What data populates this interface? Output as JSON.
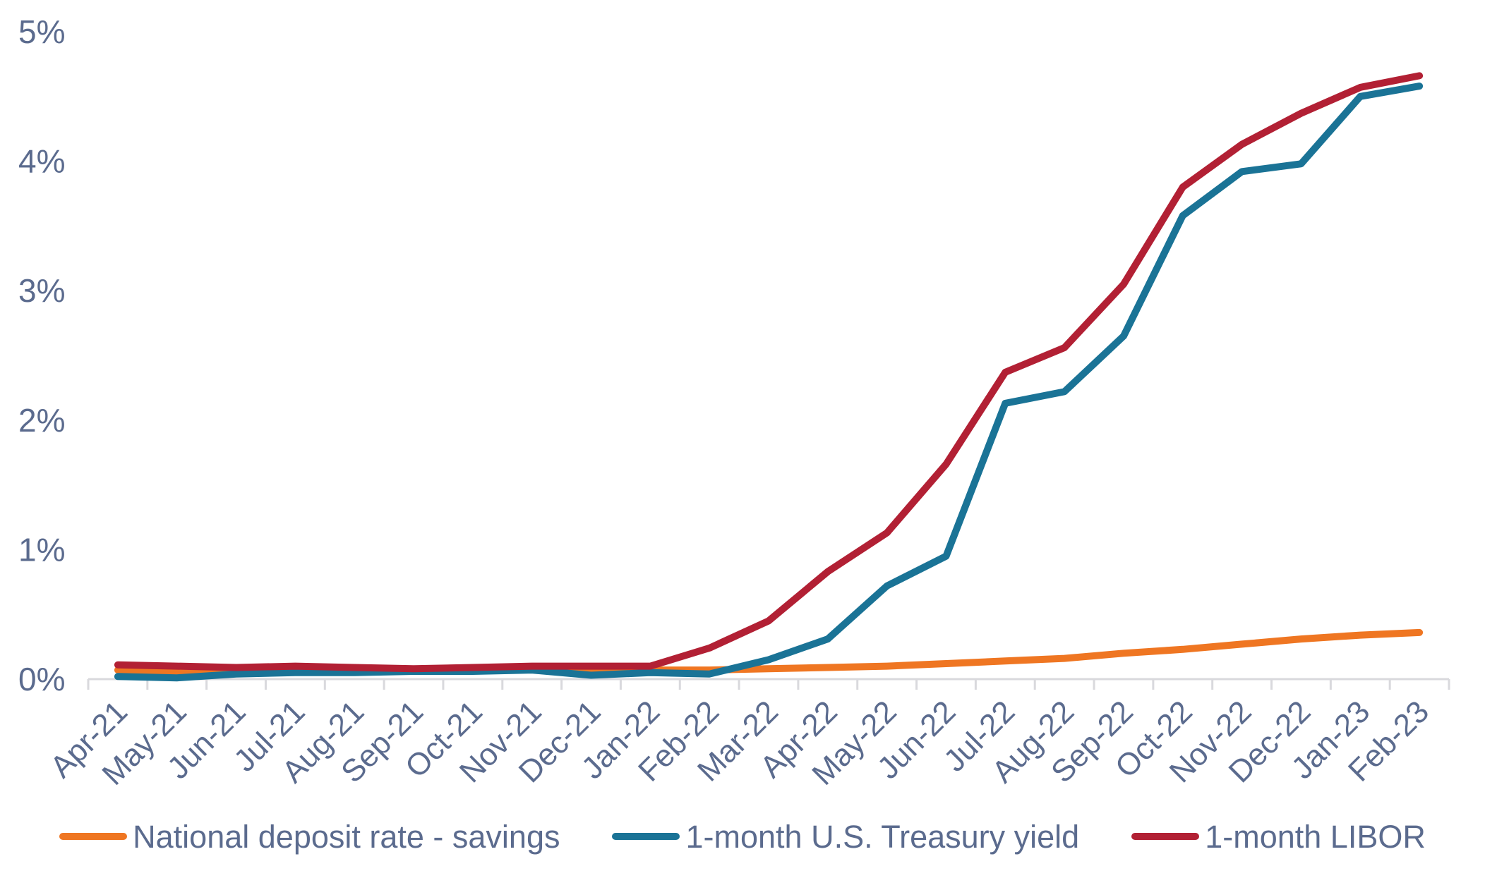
{
  "chart_data": {
    "type": "line",
    "title": "",
    "xlabel": "",
    "ylabel": "",
    "categories": [
      "Apr-21",
      "May-21",
      "Jun-21",
      "Jul-21",
      "Aug-21",
      "Sep-21",
      "Oct-21",
      "Nov-21",
      "Dec-21",
      "Jan-22",
      "Feb-22",
      "Mar-22",
      "Apr-22",
      "May-22",
      "Jun-22",
      "Jul-22",
      "Aug-22",
      "Sep-22",
      "Oct-22",
      "Nov-22",
      "Dec-22",
      "Jan-23",
      "Feb-23"
    ],
    "series": [
      {
        "name": "National deposit rate - savings",
        "color": "#EF7622",
        "values": [
          0.07,
          0.06,
          0.06,
          0.06,
          0.06,
          0.06,
          0.07,
          0.09,
          0.07,
          0.07,
          0.07,
          0.08,
          0.09,
          0.1,
          0.12,
          0.14,
          0.16,
          0.2,
          0.23,
          0.27,
          0.31,
          0.34,
          0.36
        ]
      },
      {
        "name": "1-month U.S. Treasury yield",
        "color": "#1A7396",
        "values": [
          0.02,
          0.01,
          0.04,
          0.05,
          0.05,
          0.06,
          0.06,
          0.07,
          0.03,
          0.05,
          0.04,
          0.15,
          0.31,
          0.72,
          0.95,
          2.13,
          2.22,
          2.65,
          3.58,
          3.92,
          3.98,
          4.5,
          4.58
        ]
      },
      {
        "name": "1-month LIBOR",
        "color": "#B22034",
        "values": [
          0.11,
          0.1,
          0.09,
          0.1,
          0.09,
          0.08,
          0.09,
          0.1,
          0.1,
          0.1,
          0.24,
          0.45,
          0.83,
          1.13,
          1.66,
          2.37,
          2.56,
          3.05,
          3.8,
          4.13,
          4.37,
          4.57,
          4.66
        ]
      }
    ],
    "ylim": [
      0,
      5
    ],
    "y_tick_labels": [
      "0%",
      "1%",
      "2%",
      "3%",
      "4%",
      "5%"
    ],
    "grid": false,
    "legend_position": "bottom",
    "axis_color": "#D9D9DD",
    "tick_color": "#D9D9DD",
    "label_color": "#5B6B8E"
  }
}
